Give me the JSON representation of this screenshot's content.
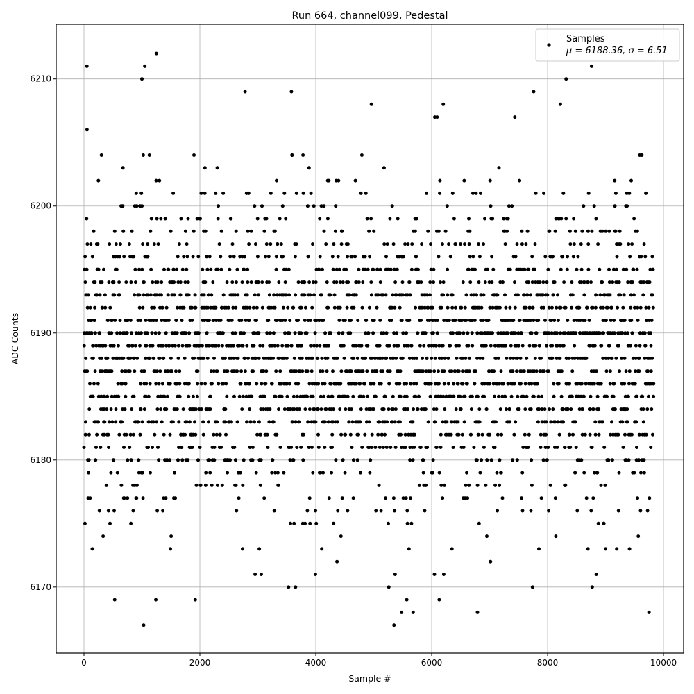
{
  "chart_data": {
    "type": "scatter",
    "title": "Run 664, channel099, Pedestal",
    "xlabel": "Sample #",
    "ylabel": "ADC Counts",
    "xlim": [
      -479,
      10347
    ],
    "ylim": [
      6164.8,
      6214.3
    ],
    "xticks": [
      0,
      2000,
      4000,
      6000,
      8000,
      10000
    ],
    "yticks": [
      6170,
      6180,
      6190,
      6200,
      6210
    ],
    "grid": true,
    "legend": {
      "placement": "top-right",
      "series_label": "Samples",
      "stats_label": "μ = 6188.36, σ = 6.51"
    },
    "marker_color": "#000000",
    "series": [
      {
        "name": "Samples",
        "mean": 6188.36,
        "sigma": 6.51,
        "x_range": [
          0,
          9830
        ],
        "values_are_integers": true,
        "outliers": [
          [
            50,
            6211
          ],
          [
            1000,
            6210
          ],
          [
            1050,
            6211
          ],
          [
            1250,
            6212
          ],
          [
            2780,
            6209
          ],
          [
            3580,
            6209
          ],
          [
            4960,
            6208
          ],
          [
            6200,
            6208
          ],
          [
            7760,
            6209
          ],
          [
            8320,
            6210
          ],
          [
            8760,
            6211
          ],
          [
            8220,
            6208
          ],
          [
            1030,
            6167
          ],
          [
            5350,
            6167
          ],
          [
            530,
            6169
          ],
          [
            1240,
            6169
          ],
          [
            1920,
            6169
          ],
          [
            5570,
            6169
          ],
          [
            6130,
            6169
          ],
          [
            3530,
            6170
          ],
          [
            3650,
            6170
          ],
          [
            5260,
            6170
          ],
          [
            7740,
            6170
          ],
          [
            8770,
            6170
          ],
          [
            5480,
            6168
          ],
          [
            5680,
            6168
          ],
          [
            6790,
            6168
          ],
          [
            9750,
            6168
          ]
        ]
      }
    ]
  }
}
